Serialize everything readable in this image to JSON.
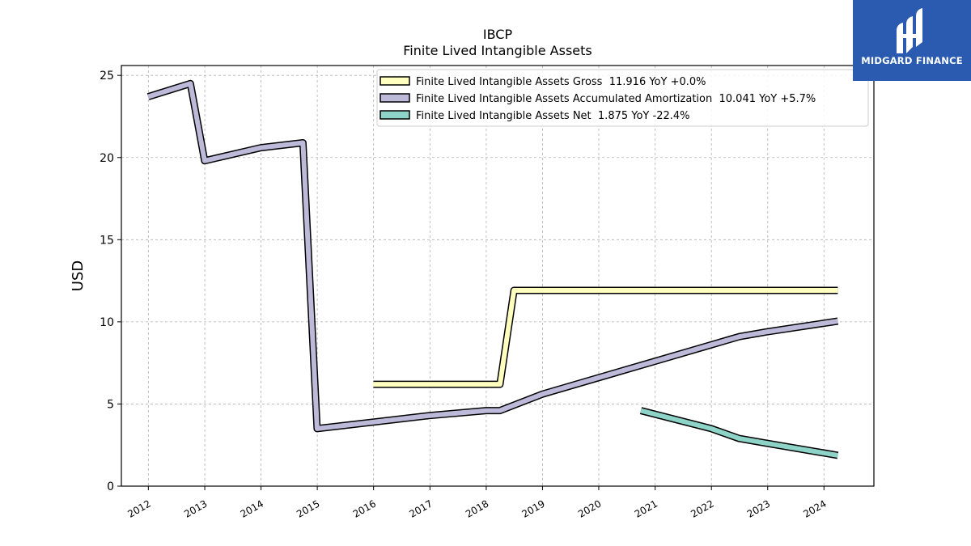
{
  "chart_data": {
    "type": "line",
    "title": "IBCP",
    "subtitle": "Finite Lived Intangible Assets",
    "ylabel": "USD",
    "xlabel": "",
    "ylim": [
      0,
      25.6
    ],
    "xlim": [
      "2011-07-10",
      "2024-11-20"
    ],
    "yticks": [
      0,
      5,
      10,
      15,
      20,
      25
    ],
    "xticks": [
      "2012",
      "2013",
      "2014",
      "2015",
      "2016",
      "2017",
      "2018",
      "2019",
      "2020",
      "2021",
      "2022",
      "2023",
      "2024"
    ],
    "grid": true,
    "legend_position": "top-right",
    "series": [
      {
        "name": "Finite Lived Intangible Assets Gross  11.916 YoY +0.0%",
        "color": "#ffffbf",
        "points": [
          [
            "2015-12-31",
            6.2
          ],
          [
            "2018-03-31",
            6.2
          ],
          [
            "2018-06-30",
            11.916
          ],
          [
            "2024-03-31",
            11.916
          ]
        ]
      },
      {
        "name": "Finite Lived Intangible Assets Accumulated Amortization  10.041 YoY +5.7%",
        "color": "#bdbad9",
        "points": [
          [
            "2011-12-31",
            23.7
          ],
          [
            "2012-09-30",
            24.5
          ],
          [
            "2012-12-31",
            19.8
          ],
          [
            "2013-12-31",
            20.6
          ],
          [
            "2014-09-30",
            20.9
          ],
          [
            "2014-12-31",
            3.5
          ],
          [
            "2015-12-31",
            3.9
          ],
          [
            "2016-12-31",
            4.3
          ],
          [
            "2017-12-31",
            4.6
          ],
          [
            "2018-03-31",
            4.6
          ],
          [
            "2018-12-31",
            5.6
          ],
          [
            "2019-12-31",
            6.6
          ],
          [
            "2020-12-31",
            7.6
          ],
          [
            "2021-12-31",
            8.6
          ],
          [
            "2022-06-30",
            9.1
          ],
          [
            "2022-12-31",
            9.4
          ],
          [
            "2024-03-31",
            10.041
          ]
        ]
      },
      {
        "name": "Finite Lived Intangible Assets Net  1.875 YoY -22.4%",
        "color": "#8dd3c7",
        "points": [
          [
            "2020-09-30",
            4.6
          ],
          [
            "2021-12-31",
            3.5
          ],
          [
            "2022-06-30",
            2.9
          ],
          [
            "2022-12-31",
            2.6
          ],
          [
            "2024-03-31",
            1.875
          ]
        ]
      }
    ]
  },
  "logo": {
    "text": "MIDGARD FINANCE",
    "background": "#2a5bb0"
  }
}
